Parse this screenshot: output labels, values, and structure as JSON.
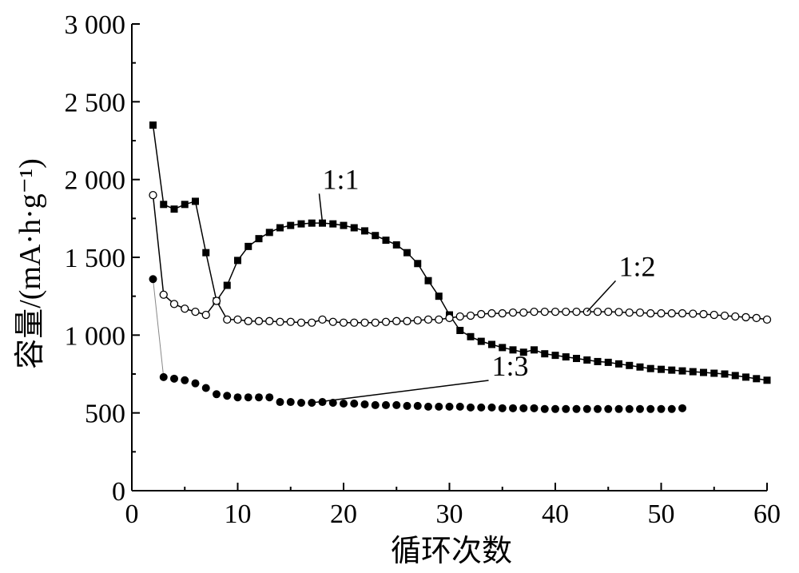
{
  "chart_data": {
    "type": "scatter",
    "title": "",
    "xlabel": "循环次数",
    "ylabel": "容量/(mA·h·g⁻¹)",
    "xlim": [
      0,
      60
    ],
    "ylim": [
      0,
      3000
    ],
    "xticks": [
      0,
      10,
      20,
      30,
      40,
      50,
      60
    ],
    "xtick_labels": [
      "0",
      "10",
      "20",
      "30",
      "40",
      "50",
      "60"
    ],
    "yticks": [
      0,
      500,
      1000,
      1500,
      2000,
      2500,
      3000
    ],
    "ytick_labels": [
      "0",
      "500",
      "1 000",
      "1 500",
      "2 000",
      "2 500",
      "3 000"
    ],
    "grid": false,
    "legend": "none",
    "series": [
      {
        "name": "1:1",
        "marker": "filled-square",
        "color": "#000000",
        "x": [
          2,
          3,
          4,
          5,
          6,
          7,
          8,
          9,
          10,
          11,
          12,
          13,
          14,
          15,
          16,
          17,
          18,
          19,
          20,
          21,
          22,
          23,
          24,
          25,
          26,
          27,
          28,
          29,
          30,
          31,
          32,
          33,
          34,
          35,
          36,
          37,
          38,
          39,
          40,
          41,
          42,
          43,
          44,
          45,
          46,
          47,
          48,
          49,
          50,
          51,
          52,
          53,
          54,
          55,
          56,
          57,
          58,
          59,
          60
        ],
        "y": [
          2350,
          1840,
          1810,
          1840,
          1860,
          1530,
          1220,
          1320,
          1480,
          1570,
          1620,
          1660,
          1690,
          1705,
          1715,
          1720,
          1720,
          1715,
          1705,
          1690,
          1670,
          1640,
          1610,
          1580,
          1530,
          1460,
          1350,
          1250,
          1130,
          1030,
          990,
          960,
          940,
          920,
          905,
          890,
          905,
          880,
          870,
          860,
          850,
          840,
          830,
          825,
          815,
          805,
          795,
          785,
          780,
          775,
          770,
          765,
          760,
          755,
          750,
          740,
          730,
          720,
          710
        ]
      },
      {
        "name": "1:2",
        "marker": "open-circle",
        "color": "#000000",
        "x": [
          2,
          3,
          4,
          5,
          6,
          7,
          8,
          9,
          10,
          11,
          12,
          13,
          14,
          15,
          16,
          17,
          18,
          19,
          20,
          21,
          22,
          23,
          24,
          25,
          26,
          27,
          28,
          29,
          30,
          31,
          32,
          33,
          34,
          35,
          36,
          37,
          38,
          39,
          40,
          41,
          42,
          43,
          44,
          45,
          46,
          47,
          48,
          49,
          50,
          51,
          52,
          53,
          54,
          55,
          56,
          57,
          58,
          59,
          60
        ],
        "y": [
          1900,
          1260,
          1200,
          1170,
          1150,
          1130,
          1220,
          1100,
          1100,
          1090,
          1090,
          1090,
          1085,
          1085,
          1080,
          1080,
          1100,
          1085,
          1080,
          1080,
          1080,
          1080,
          1085,
          1090,
          1090,
          1095,
          1100,
          1100,
          1110,
          1120,
          1125,
          1135,
          1140,
          1140,
          1145,
          1145,
          1150,
          1150,
          1150,
          1150,
          1150,
          1150,
          1150,
          1150,
          1148,
          1145,
          1145,
          1140,
          1140,
          1140,
          1140,
          1138,
          1135,
          1130,
          1125,
          1120,
          1115,
          1110,
          1100
        ]
      },
      {
        "name": "1:3",
        "marker": "filled-circle",
        "color": "#000000",
        "x": [
          2,
          3,
          4,
          5,
          6,
          7,
          8,
          9,
          10,
          11,
          12,
          13,
          14,
          15,
          16,
          17,
          18,
          19,
          20,
          21,
          22,
          23,
          24,
          25,
          26,
          27,
          28,
          29,
          30,
          31,
          32,
          33,
          34,
          35,
          36,
          37,
          38,
          39,
          40,
          41,
          42,
          43,
          44,
          45,
          46,
          47,
          48,
          49,
          50,
          51,
          52
        ],
        "y": [
          1360,
          730,
          720,
          710,
          690,
          660,
          620,
          610,
          600,
          600,
          600,
          600,
          570,
          570,
          565,
          565,
          570,
          565,
          560,
          560,
          555,
          550,
          550,
          550,
          545,
          545,
          540,
          540,
          540,
          540,
          535,
          535,
          535,
          530,
          530,
          530,
          530,
          525,
          525,
          525,
          525,
          525,
          525,
          525,
          525,
          525,
          525,
          525,
          525,
          525,
          530
        ]
      }
    ],
    "annotations": [
      {
        "text": "1:1",
        "x": 18,
        "y": 1940,
        "arrow_to": [
          18,
          1725
        ]
      },
      {
        "text": "1:2",
        "x": 46,
        "y": 1380,
        "arrow_to": [
          43,
          1150
        ]
      },
      {
        "text": "1:3",
        "x": 34,
        "y": 740,
        "arrow_to": [
          17,
          565
        ]
      }
    ]
  }
}
